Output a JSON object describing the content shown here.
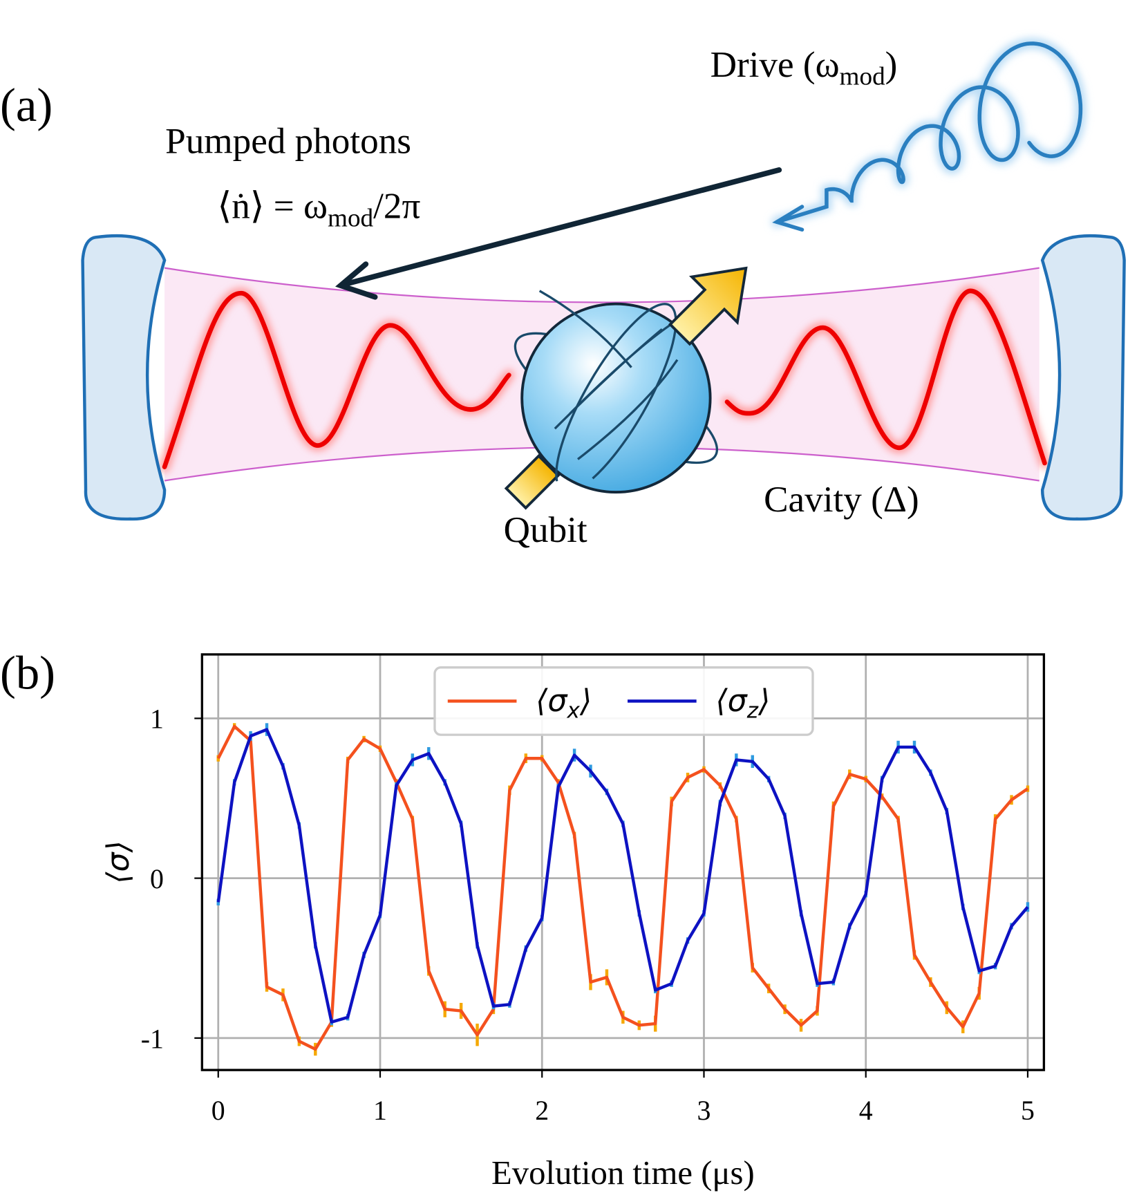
{
  "panel_labels": [
    "(a)",
    "(b)"
  ],
  "diagram": {
    "drive_label": "Drive (ω_{mod})",
    "pumped_label": "Pumped photons",
    "pumped_rate": "⟨ṅ⟩ = ω_{mod}/2π",
    "qubit_label": "Qubit",
    "cavity_label": "Cavity (Δ)"
  },
  "chart_data": {
    "type": "line",
    "xlabel": "Evolution time (μs)",
    "ylabel": "⟨σ⟩",
    "x": [
      0,
      0.1,
      0.2,
      0.3,
      0.4,
      0.5,
      0.6,
      0.7,
      0.8,
      0.9,
      1,
      1.1,
      1.2,
      1.3,
      1.4,
      1.5,
      1.6,
      1.7,
      1.8,
      1.9,
      2,
      2.1,
      2.2,
      2.3,
      2.4,
      2.5,
      2.6,
      2.7,
      2.8,
      2.9,
      3,
      3.1,
      3.2,
      3.3,
      3.4,
      3.5,
      3.6,
      3.7,
      3.8,
      3.9,
      4,
      4.1,
      4.2,
      4.3,
      4.4,
      4.5,
      4.6,
      4.7,
      4.8,
      4.9,
      5
    ],
    "series": [
      {
        "name": "⟨σ_x⟩",
        "color": "#f4511e",
        "error_color": "#f5a800",
        "values": [
          0.75,
          0.95,
          0.86,
          -0.68,
          -0.73,
          -1.02,
          -1.07,
          -0.9,
          0.74,
          0.87,
          0.81,
          0.6,
          0.37,
          -0.58,
          -0.82,
          -0.83,
          -0.98,
          -0.82,
          0.55,
          0.75,
          0.75,
          0.6,
          0.27,
          -0.65,
          -0.62,
          -0.87,
          -0.92,
          -0.91,
          0.48,
          0.63,
          0.68,
          0.58,
          0.37,
          -0.56,
          -0.69,
          -0.82,
          -0.92,
          -0.83,
          0.45,
          0.65,
          0.62,
          0.51,
          0.37,
          -0.48,
          -0.65,
          -0.81,
          -0.93,
          -0.72,
          0.37,
          0.49,
          0.56
        ],
        "errors": [
          0.02,
          0.02,
          0.02,
          0.03,
          0.04,
          0.03,
          0.04,
          0.03,
          0.02,
          0.02,
          0.02,
          0.02,
          0.02,
          0.03,
          0.05,
          0.05,
          0.07,
          0.03,
          0.03,
          0.03,
          0.02,
          0.02,
          0.02,
          0.05,
          0.05,
          0.04,
          0.03,
          0.05,
          0.03,
          0.03,
          0.02,
          0.02,
          0.02,
          0.03,
          0.03,
          0.03,
          0.04,
          0.03,
          0.03,
          0.03,
          0.02,
          0.02,
          0.02,
          0.03,
          0.03,
          0.04,
          0.04,
          0.04,
          0.03,
          0.03,
          0.02
        ]
      },
      {
        "name": "⟨σ_z⟩",
        "color": "#0d12c2",
        "error_color": "#2f9be0",
        "values": [
          -0.15,
          0.6,
          0.89,
          0.93,
          0.7,
          0.33,
          -0.42,
          -0.9,
          -0.87,
          -0.48,
          -0.23,
          0.58,
          0.74,
          0.78,
          0.6,
          0.34,
          -0.42,
          -0.8,
          -0.79,
          -0.44,
          -0.25,
          0.57,
          0.77,
          0.67,
          0.54,
          0.34,
          -0.22,
          -0.7,
          -0.66,
          -0.39,
          -0.22,
          0.47,
          0.74,
          0.73,
          0.62,
          0.39,
          -0.22,
          -0.66,
          -0.65,
          -0.3,
          -0.1,
          0.62,
          0.82,
          0.82,
          0.66,
          0.42,
          -0.18,
          -0.58,
          -0.55,
          -0.3,
          -0.18
        ],
        "errors": [
          0.02,
          0.02,
          0.03,
          0.04,
          0.02,
          0.02,
          0.02,
          0.02,
          0.02,
          0.02,
          0.02,
          0.02,
          0.04,
          0.04,
          0.02,
          0.02,
          0.02,
          0.02,
          0.02,
          0.02,
          0.02,
          0.02,
          0.04,
          0.04,
          0.02,
          0.02,
          0.02,
          0.02,
          0.02,
          0.02,
          0.02,
          0.02,
          0.04,
          0.04,
          0.02,
          0.02,
          0.02,
          0.02,
          0.02,
          0.02,
          0.02,
          0.02,
          0.04,
          0.04,
          0.02,
          0.02,
          0.02,
          0.02,
          0.02,
          0.02,
          0.03
        ]
      }
    ],
    "xlim": [
      -0.1,
      5.1
    ],
    "ylim": [
      -1.2,
      1.4
    ],
    "xticks": [
      0,
      1,
      2,
      3,
      4,
      5
    ],
    "yticks": [
      -1,
      0,
      1
    ],
    "grid": true,
    "legend": "upper center"
  }
}
